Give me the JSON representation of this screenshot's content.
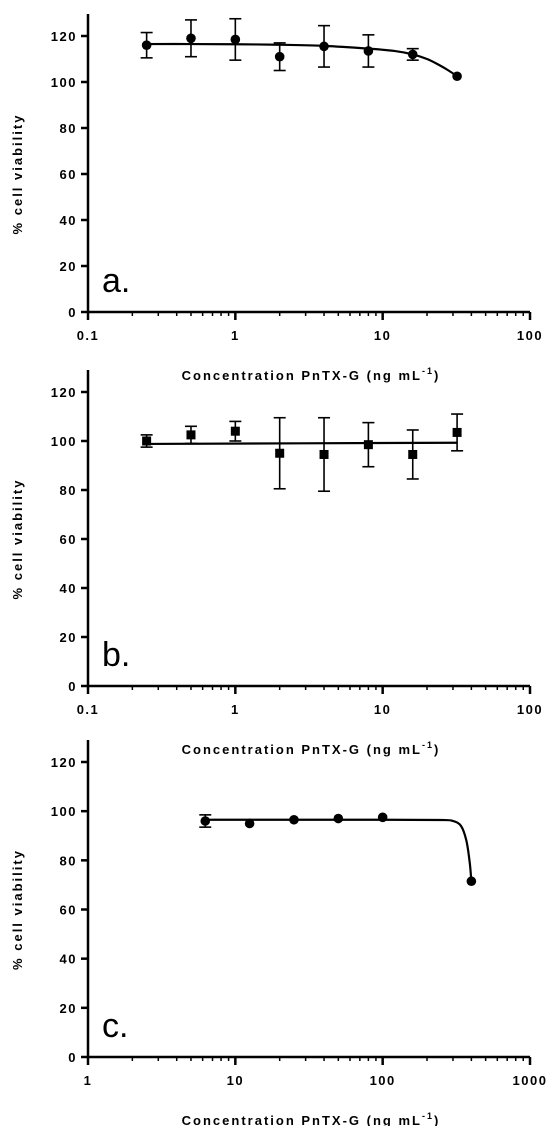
{
  "chart_data": [
    {
      "type": "scatter",
      "panel_label": "a.",
      "xlabel_main": "Concentration PnTX-G (ng mL",
      "xlabel_sup": "-1",
      "xlabel_close": ")",
      "ylabel": "% cell viability",
      "xscale": "log",
      "xlim": [
        0.1,
        100
      ],
      "ylim": [
        0,
        120
      ],
      "xticks": [
        0.1,
        1,
        10,
        100
      ],
      "xtick_labels": [
        "0.1",
        "1",
        "10",
        "100"
      ],
      "yticks": [
        0,
        20,
        40,
        60,
        80,
        100,
        120
      ],
      "ytick_labels": [
        "0",
        "20",
        "40",
        "60",
        "80",
        "100",
        "120"
      ],
      "marker": "circle",
      "x": [
        0.25,
        0.5,
        1,
        2,
        4,
        8,
        16,
        32
      ],
      "y": [
        116,
        119,
        118.5,
        111,
        115.5,
        113.5,
        112,
        102.5
      ],
      "error": [
        5.5,
        8,
        9,
        6,
        9,
        7,
        2.5,
        0
      ],
      "fit_curve": {
        "x": [
          0.25,
          0.5,
          1,
          2,
          4,
          8,
          12,
          16,
          20,
          24,
          28,
          32
        ],
        "y": [
          116.5,
          116.5,
          116.4,
          116.2,
          115.7,
          114.5,
          113.5,
          112,
          110,
          107.5,
          105,
          102.5
        ]
      }
    },
    {
      "type": "scatter",
      "panel_label": "b.",
      "xlabel_main": "Concentration PnTX-G (ng mL",
      "xlabel_sup": "-1",
      "xlabel_close": ")",
      "ylabel": "% cell viability",
      "xscale": "log",
      "xlim": [
        0.1,
        100
      ],
      "ylim": [
        0,
        120
      ],
      "xticks": [
        0.1,
        1,
        10,
        100
      ],
      "xtick_labels": [
        "0.1",
        "1",
        "10",
        "100"
      ],
      "yticks": [
        0,
        20,
        40,
        60,
        80,
        100,
        120
      ],
      "ytick_labels": [
        "0",
        "20",
        "40",
        "60",
        "80",
        "100",
        "120"
      ],
      "marker": "square",
      "x": [
        0.25,
        0.5,
        1,
        2,
        4,
        8,
        16,
        32
      ],
      "y": [
        100,
        102.5,
        104,
        95,
        94.5,
        98.5,
        94.5,
        103.5
      ],
      "error": [
        2.5,
        3.5,
        4,
        14.5,
        15,
        9,
        10,
        7.5
      ],
      "fit_curve": {
        "x": [
          0.25,
          32
        ],
        "y": [
          98.8,
          99.3
        ]
      }
    },
    {
      "type": "scatter",
      "panel_label": "c.",
      "xlabel_main": "Concentration PnTX-G (ng mL",
      "xlabel_sup": "-1",
      "xlabel_close": ")",
      "ylabel": "% cell viability",
      "xscale": "log",
      "xlim": [
        1,
        1000
      ],
      "ylim": [
        0,
        120
      ],
      "xticks": [
        1,
        10,
        100,
        1000
      ],
      "xtick_labels": [
        "1",
        "10",
        "100",
        "1000"
      ],
      "yticks": [
        0,
        20,
        40,
        60,
        80,
        100,
        120
      ],
      "ytick_labels": [
        "0",
        "20",
        "40",
        "60",
        "80",
        "100",
        "120"
      ],
      "marker": "circle",
      "x": [
        6.25,
        12.5,
        25,
        50,
        100,
        400
      ],
      "y": [
        96,
        95,
        96.5,
        97,
        97.5,
        71.5
      ],
      "error": [
        2.5,
        0,
        0,
        0,
        0,
        0
      ],
      "fit_curve": {
        "x": [
          6.25,
          25,
          100,
          250,
          300,
          340,
          370,
          390,
          400
        ],
        "y": [
          96.5,
          96.5,
          96.5,
          96.4,
          96,
          94,
          88,
          79,
          71.5
        ]
      }
    }
  ]
}
